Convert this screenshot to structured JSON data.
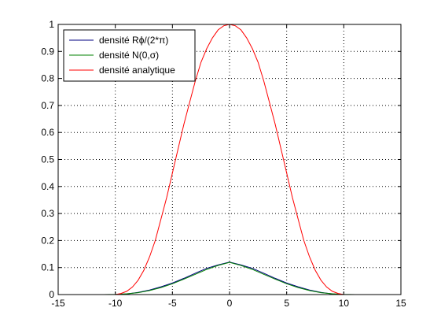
{
  "chart_data": {
    "type": "line",
    "title": "",
    "xlabel": "",
    "ylabel": "",
    "xlim": [
      -15,
      15
    ],
    "ylim": [
      0,
      1
    ],
    "x_ticks": [
      -15,
      -10,
      -5,
      0,
      5,
      10,
      15
    ],
    "y_ticks": [
      0,
      0.1,
      0.2,
      0.3,
      0.4,
      0.5,
      0.6,
      0.7,
      0.8,
      0.9,
      1
    ],
    "x_tick_labels": [
      "-15",
      "-10",
      "-5",
      "0",
      "5",
      "10",
      "15"
    ],
    "y_tick_labels": [
      "0",
      "0.1",
      "0.2",
      "0.3",
      "0.4",
      "0.5",
      "0.6",
      "0.7",
      "0.8",
      "0.9",
      "1"
    ],
    "grid": true,
    "legend_position": "top-left",
    "series": [
      {
        "name": "densité Rϕ/(2*π)",
        "color": "#000080",
        "x": [
          -12,
          -11,
          -10,
          -9,
          -8,
          -7,
          -6,
          -5,
          -4,
          -3,
          -2,
          -1,
          0,
          1,
          2,
          3,
          4,
          5,
          6,
          7,
          8,
          9,
          10,
          11,
          12
        ],
        "y": [
          0,
          0,
          0,
          0.002,
          0.008,
          0.017,
          0.029,
          0.043,
          0.06,
          0.079,
          0.097,
          0.11,
          0.12,
          0.11,
          0.097,
          0.079,
          0.06,
          0.043,
          0.029,
          0.017,
          0.008,
          0.002,
          0,
          0,
          0
        ]
      },
      {
        "name": "densité N(0,σ)",
        "color": "#008000",
        "x": [
          -12,
          -11,
          -10,
          -9,
          -8,
          -7,
          -6,
          -5,
          -4,
          -3,
          -2,
          -1,
          0,
          1,
          2,
          3,
          4,
          5,
          6,
          7,
          8,
          9,
          10,
          11,
          12
        ],
        "y": [
          0,
          0,
          0.001,
          0.003,
          0.007,
          0.015,
          0.026,
          0.04,
          0.057,
          0.075,
          0.093,
          0.108,
          0.119,
          0.108,
          0.093,
          0.075,
          0.057,
          0.04,
          0.026,
          0.015,
          0.007,
          0.003,
          0.001,
          0,
          0
        ]
      },
      {
        "name": "densité analytique",
        "color": "#ff0000",
        "x": [
          -12,
          -11,
          -10,
          -9.5,
          -9,
          -8.5,
          -8,
          -7.5,
          -7,
          -6.5,
          -6,
          -5.5,
          -5,
          -4.5,
          -4,
          -3.5,
          -3,
          -2.5,
          -2,
          -1.5,
          -1,
          -0.5,
          0,
          0.5,
          1,
          1.5,
          2,
          2.5,
          3,
          3.5,
          4,
          4.5,
          5,
          5.5,
          6,
          6.5,
          7,
          7.5,
          8,
          8.5,
          9,
          9.5,
          10,
          11,
          12
        ],
        "y": [
          0,
          0,
          0,
          0.004,
          0.012,
          0.028,
          0.053,
          0.09,
          0.14,
          0.2,
          0.28,
          0.36,
          0.45,
          0.54,
          0.63,
          0.71,
          0.79,
          0.86,
          0.91,
          0.95,
          0.98,
          0.995,
          1.0,
          0.995,
          0.98,
          0.95,
          0.91,
          0.86,
          0.79,
          0.71,
          0.63,
          0.54,
          0.45,
          0.36,
          0.28,
          0.2,
          0.14,
          0.09,
          0.053,
          0.028,
          0.012,
          0.004,
          0,
          0,
          0
        ]
      }
    ]
  }
}
